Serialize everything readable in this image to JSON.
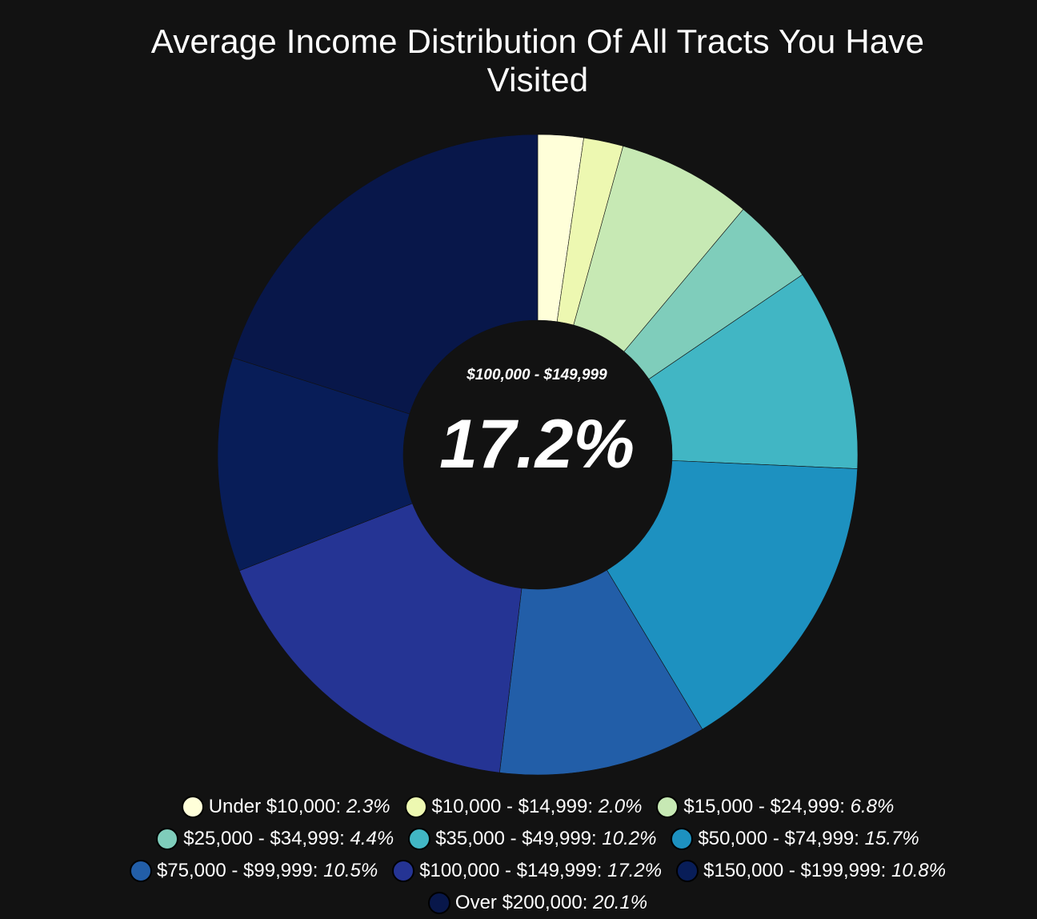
{
  "title_lines": [
    "Average Income Distribution Of All Tracts You Have",
    "Visited"
  ],
  "center": {
    "label": "$100,000 - $149,999",
    "value": "17.2%"
  },
  "chart_data": {
    "type": "pie",
    "variant": "donut",
    "title": "Average Income Distribution Of All Tracts You Have Visited",
    "categories": [
      "Under $10,000",
      "$10,000 - $14,999",
      "$15,000 - $24,999",
      "$25,000 - $34,999",
      "$35,000 - $49,999",
      "$50,000 - $74,999",
      "$75,000 - $99,999",
      "$100,000 - $149,999",
      "$150,000 - $199,999",
      "Over $200,000"
    ],
    "values": [
      2.3,
      2.0,
      6.8,
      4.4,
      10.2,
      15.7,
      10.5,
      17.2,
      10.8,
      20.1
    ],
    "value_labels": [
      "2.3%",
      "2.0%",
      "6.8%",
      "4.4%",
      "10.2%",
      "15.7%",
      "10.5%",
      "17.2%",
      "10.8%",
      "20.1%"
    ],
    "colors": [
      "#ffffd9",
      "#edf8b1",
      "#c7e9b4",
      "#7fcdbb",
      "#41b6c4",
      "#1d91c0",
      "#225ea8",
      "#253494",
      "#081d58",
      "#08174a"
    ],
    "legend_position": "bottom",
    "highlighted": "$100,000 - $149,999"
  },
  "legend_rows": [
    [
      0,
      1,
      2
    ],
    [
      3,
      4,
      5
    ],
    [
      6,
      7,
      8
    ],
    [
      9
    ]
  ]
}
